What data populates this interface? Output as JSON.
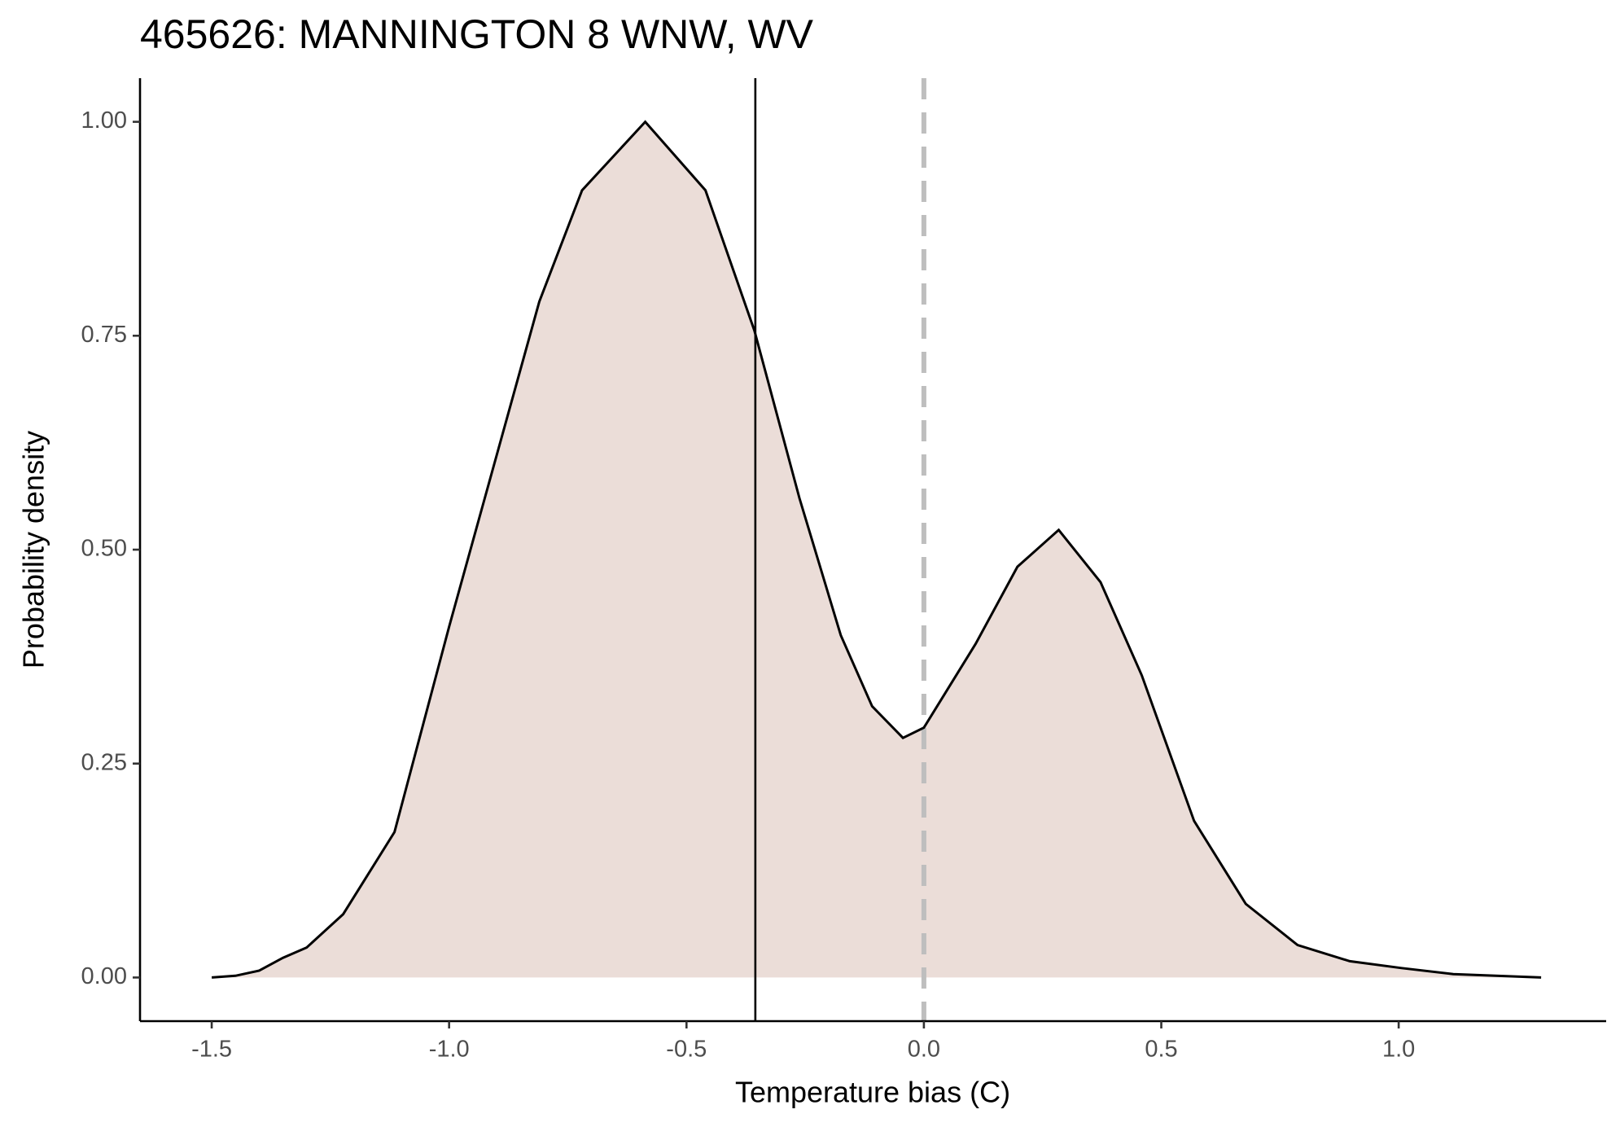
{
  "chart_data": {
    "type": "density",
    "title": "465626: MANNINGTON 8 WNW, WV",
    "x_label": "Temperature bias (C)",
    "y_label": "Probability density",
    "x": [
      -1.5,
      -1.45,
      -1.4,
      -1.35,
      -1.3,
      -1.223,
      -1.115,
      -1.0,
      -0.93,
      -0.81,
      -0.72,
      -0.587,
      -0.46,
      -0.357,
      -0.262,
      -0.175,
      -0.109,
      -0.044,
      0.0,
      0.109,
      0.197,
      0.284,
      0.372,
      0.459,
      0.569,
      0.678,
      0.787,
      0.897,
      1.006,
      1.115,
      1.3
    ],
    "values": [
      0.0,
      0.002,
      0.008,
      0.023,
      0.035,
      0.074,
      0.17,
      0.41,
      0.55,
      0.79,
      0.92,
      1.0,
      0.92,
      0.756,
      0.56,
      0.4,
      0.317,
      0.28,
      0.292,
      0.39,
      0.48,
      0.523,
      0.462,
      0.353,
      0.183,
      0.086,
      0.038,
      0.019,
      0.011,
      0.004,
      0.0
    ],
    "fill_color": "#ebddd8",
    "line_color": "#000000",
    "vlines": [
      {
        "x": -0.355,
        "color": "#000000",
        "style": "solid"
      },
      {
        "x": 0.0,
        "color": "#bebebe",
        "style": "dashed"
      }
    ],
    "xlim": [
      -1.651,
      1.437
    ],
    "ylim": [
      -0.051,
      1.051
    ],
    "xticks": [
      -1.5,
      {
        "value": -1,
        "label": "-1.0"
      },
      -0.5,
      {
        "value": 0,
        "label": "0.0"
      },
      0.5,
      {
        "value": 1,
        "label": "1.0"
      }
    ],
    "yticks": [
      {
        "value": 0,
        "label": "0.00"
      },
      0.25,
      {
        "value": 0.5,
        "label": "0.50"
      },
      0.75,
      {
        "value": 1,
        "label": "1.00"
      }
    ]
  }
}
